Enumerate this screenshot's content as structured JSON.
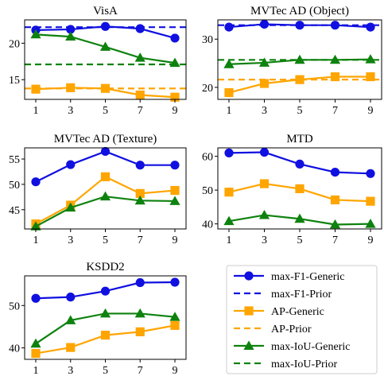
{
  "colors": {
    "max_f1": "#1010e0",
    "ap": "#ffa500",
    "iou": "#0e820e",
    "axis": "#000000"
  },
  "legend": {
    "entries": [
      {
        "label": "max-F1-Generic",
        "series": "max_f1",
        "style": "solid",
        "marker": "circle"
      },
      {
        "label": "max-F1-Prior",
        "series": "max_f1",
        "style": "dashed",
        "marker": "none"
      },
      {
        "label": "AP-Generic",
        "series": "ap",
        "style": "solid",
        "marker": "square"
      },
      {
        "label": "AP-Prior",
        "series": "ap",
        "style": "dashed",
        "marker": "none"
      },
      {
        "label": "max-IoU-Generic",
        "series": "iou",
        "style": "solid",
        "marker": "triangle"
      },
      {
        "label": "max-IoU-Prior",
        "series": "iou",
        "style": "dashed",
        "marker": "none"
      }
    ]
  },
  "chart_data": [
    {
      "type": "line",
      "title": "VisA",
      "x": [
        1,
        3,
        5,
        7,
        9
      ],
      "yticks": [
        15,
        20
      ],
      "ylim": [
        12.3,
        23.2
      ],
      "series": [
        {
          "name": "max-F1-Generic",
          "key": "max_f1",
          "values": [
            21.8,
            21.9,
            22.3,
            22.0,
            20.7
          ]
        },
        {
          "name": "AP-Generic",
          "key": "ap",
          "values": [
            13.7,
            13.9,
            13.8,
            12.9,
            12.6
          ]
        },
        {
          "name": "max-IoU-Generic",
          "key": "iou",
          "values": [
            21.2,
            20.9,
            19.5,
            18.0,
            17.3
          ]
        }
      ],
      "priors": [
        {
          "name": "max-F1-Prior",
          "key": "max_f1",
          "value": 22.2
        },
        {
          "name": "AP-Prior",
          "key": "ap",
          "value": 13.8
        },
        {
          "name": "max-IoU-Prior",
          "key": "iou",
          "value": 17.1
        }
      ]
    },
    {
      "type": "line",
      "title": "MVTec AD (Object)",
      "x": [
        1,
        3,
        5,
        7,
        9
      ],
      "yticks": [
        20,
        30
      ],
      "ylim": [
        17.5,
        34.0
      ],
      "series": [
        {
          "name": "max-F1-Generic",
          "key": "max_f1",
          "values": [
            32.5,
            33.1,
            32.9,
            32.9,
            32.5
          ]
        },
        {
          "name": "AP-Generic",
          "key": "ap",
          "values": [
            18.9,
            20.8,
            21.6,
            22.2,
            22.2
          ]
        },
        {
          "name": "max-IoU-Generic",
          "key": "iou",
          "values": [
            24.8,
            25.1,
            25.7,
            25.7,
            25.8
          ]
        }
      ],
      "priors": [
        {
          "name": "max-F1-Prior",
          "key": "max_f1",
          "value": 32.9
        },
        {
          "name": "AP-Prior",
          "key": "ap",
          "value": 21.6
        },
        {
          "name": "max-IoU-Prior",
          "key": "iou",
          "value": 25.7
        }
      ]
    },
    {
      "type": "line",
      "title": "MVTec AD (Texture)",
      "x": [
        1,
        3,
        5,
        7,
        9
      ],
      "yticks": [
        45,
        50,
        55
      ],
      "ylim": [
        41.2,
        57.2
      ],
      "series": [
        {
          "name": "max-F1-Generic",
          "key": "max_f1",
          "values": [
            50.5,
            53.9,
            56.5,
            53.8,
            53.8
          ]
        },
        {
          "name": "AP-Generic",
          "key": "ap",
          "values": [
            42.2,
            45.9,
            51.5,
            48.2,
            48.8
          ]
        },
        {
          "name": "max-IoU-Generic",
          "key": "iou",
          "values": [
            41.7,
            45.4,
            47.6,
            46.8,
            46.7
          ]
        }
      ],
      "priors": []
    },
    {
      "type": "line",
      "title": "MTD",
      "x": [
        1,
        3,
        5,
        7,
        9
      ],
      "yticks": [
        40,
        50,
        60
      ],
      "ylim": [
        38.5,
        62.5
      ],
      "series": [
        {
          "name": "max-F1-Generic",
          "key": "max_f1",
          "values": [
            61.0,
            61.2,
            57.7,
            55.3,
            54.9
          ]
        },
        {
          "name": "AP-Generic",
          "key": "ap",
          "values": [
            49.4,
            51.9,
            50.4,
            47.1,
            46.7
          ]
        },
        {
          "name": "max-IoU-Generic",
          "key": "iou",
          "values": [
            40.8,
            42.6,
            41.5,
            39.8,
            40.0
          ]
        }
      ],
      "priors": []
    },
    {
      "type": "line",
      "title": "KSDD2",
      "x": [
        1,
        3,
        5,
        7,
        9
      ],
      "yticks": [
        40,
        50
      ],
      "ylim": [
        37.3,
        57.0
      ],
      "series": [
        {
          "name": "max-F1-Generic",
          "key": "max_f1",
          "values": [
            51.7,
            52.0,
            53.4,
            55.4,
            55.5
          ]
        },
        {
          "name": "AP-Generic",
          "key": "ap",
          "values": [
            38.7,
            40.1,
            43.0,
            43.8,
            45.3
          ]
        },
        {
          "name": "max-IoU-Generic",
          "key": "iou",
          "values": [
            41.0,
            46.5,
            48.1,
            48.1,
            47.3
          ]
        }
      ],
      "priors": []
    }
  ]
}
